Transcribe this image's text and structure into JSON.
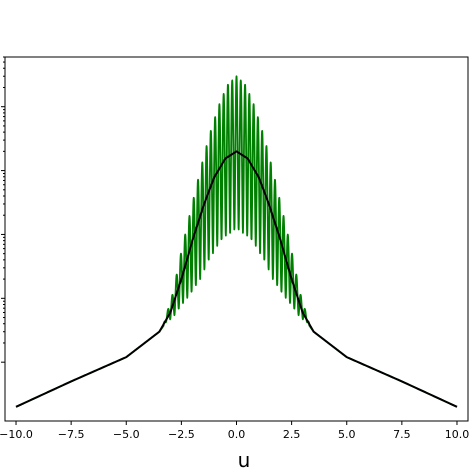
{
  "chart_data": {
    "type": "line",
    "title": "",
    "xlabel": "u",
    "ylabel": "",
    "xlim": [
      -10.5,
      10.5
    ],
    "x_ticks": [
      -10.0,
      -7.5,
      -5.0,
      -2.5,
      0.0,
      2.5,
      5.0,
      7.5,
      10.0
    ],
    "x_tick_labels": [
      "−10.0",
      "−7.5",
      "−5.0",
      "−2.5",
      "0.0",
      "2.5",
      "5.0",
      "7.5",
      "10.0"
    ],
    "y_scale": "log",
    "y_tick_labels_visible": false,
    "grid": false,
    "legend": "none",
    "series": [
      {
        "color": "#008000",
        "x": [
          -10.0,
          -7.5,
          -5.0,
          -3.5,
          -3.2,
          -3.0,
          -2.5,
          -2.0,
          -1.5,
          -1.0,
          -0.5,
          0.0,
          0.5,
          1.0,
          1.5,
          2.0,
          2.5,
          3.0,
          3.2,
          3.5,
          5.0,
          7.5,
          10.0
        ],
        "y": [
          0.0002,
          0.0005,
          0.0012,
          0.003,
          0.0042,
          0.008,
          0.03,
          0.11,
          0.35,
          0.9,
          1.6,
          2.0,
          1.6,
          0.9,
          0.35,
          0.11,
          0.03,
          0.008,
          0.0042,
          0.003,
          0.0012,
          0.0005,
          0.0002
        ],
        "oscillation_band": {
          "x_range": [
            -3.3,
            3.3
          ],
          "upper_y": [
            0.004,
            0.012,
            0.06,
            0.25,
            1.0,
            3.5,
            10,
            22,
            30,
            22,
            10,
            3.5,
            1.0,
            0.25,
            0.06,
            0.012,
            0.004
          ],
          "lower_y": [
            0.004,
            0.005,
            0.008,
            0.012,
            0.02,
            0.04,
            0.07,
            0.1,
            0.12,
            0.1,
            0.07,
            0.04,
            0.02,
            0.012,
            0.008,
            0.005,
            0.004
          ],
          "peaks": 34
        }
      },
      {
        "color": "#000000",
        "x": [
          -10.0,
          -7.5,
          -5.0,
          -3.5,
          -3.0,
          -2.5,
          -2.0,
          -1.5,
          -1.0,
          -0.5,
          0.0,
          0.5,
          1.0,
          1.5,
          2.0,
          2.5,
          3.0,
          3.5,
          5.0,
          7.5,
          10.0
        ],
        "y": [
          0.0002,
          0.0005,
          0.0012,
          0.003,
          0.006,
          0.02,
          0.08,
          0.28,
          0.8,
          1.55,
          2.0,
          1.55,
          0.8,
          0.28,
          0.08,
          0.02,
          0.006,
          0.003,
          0.0012,
          0.0005,
          0.0002
        ]
      }
    ]
  }
}
